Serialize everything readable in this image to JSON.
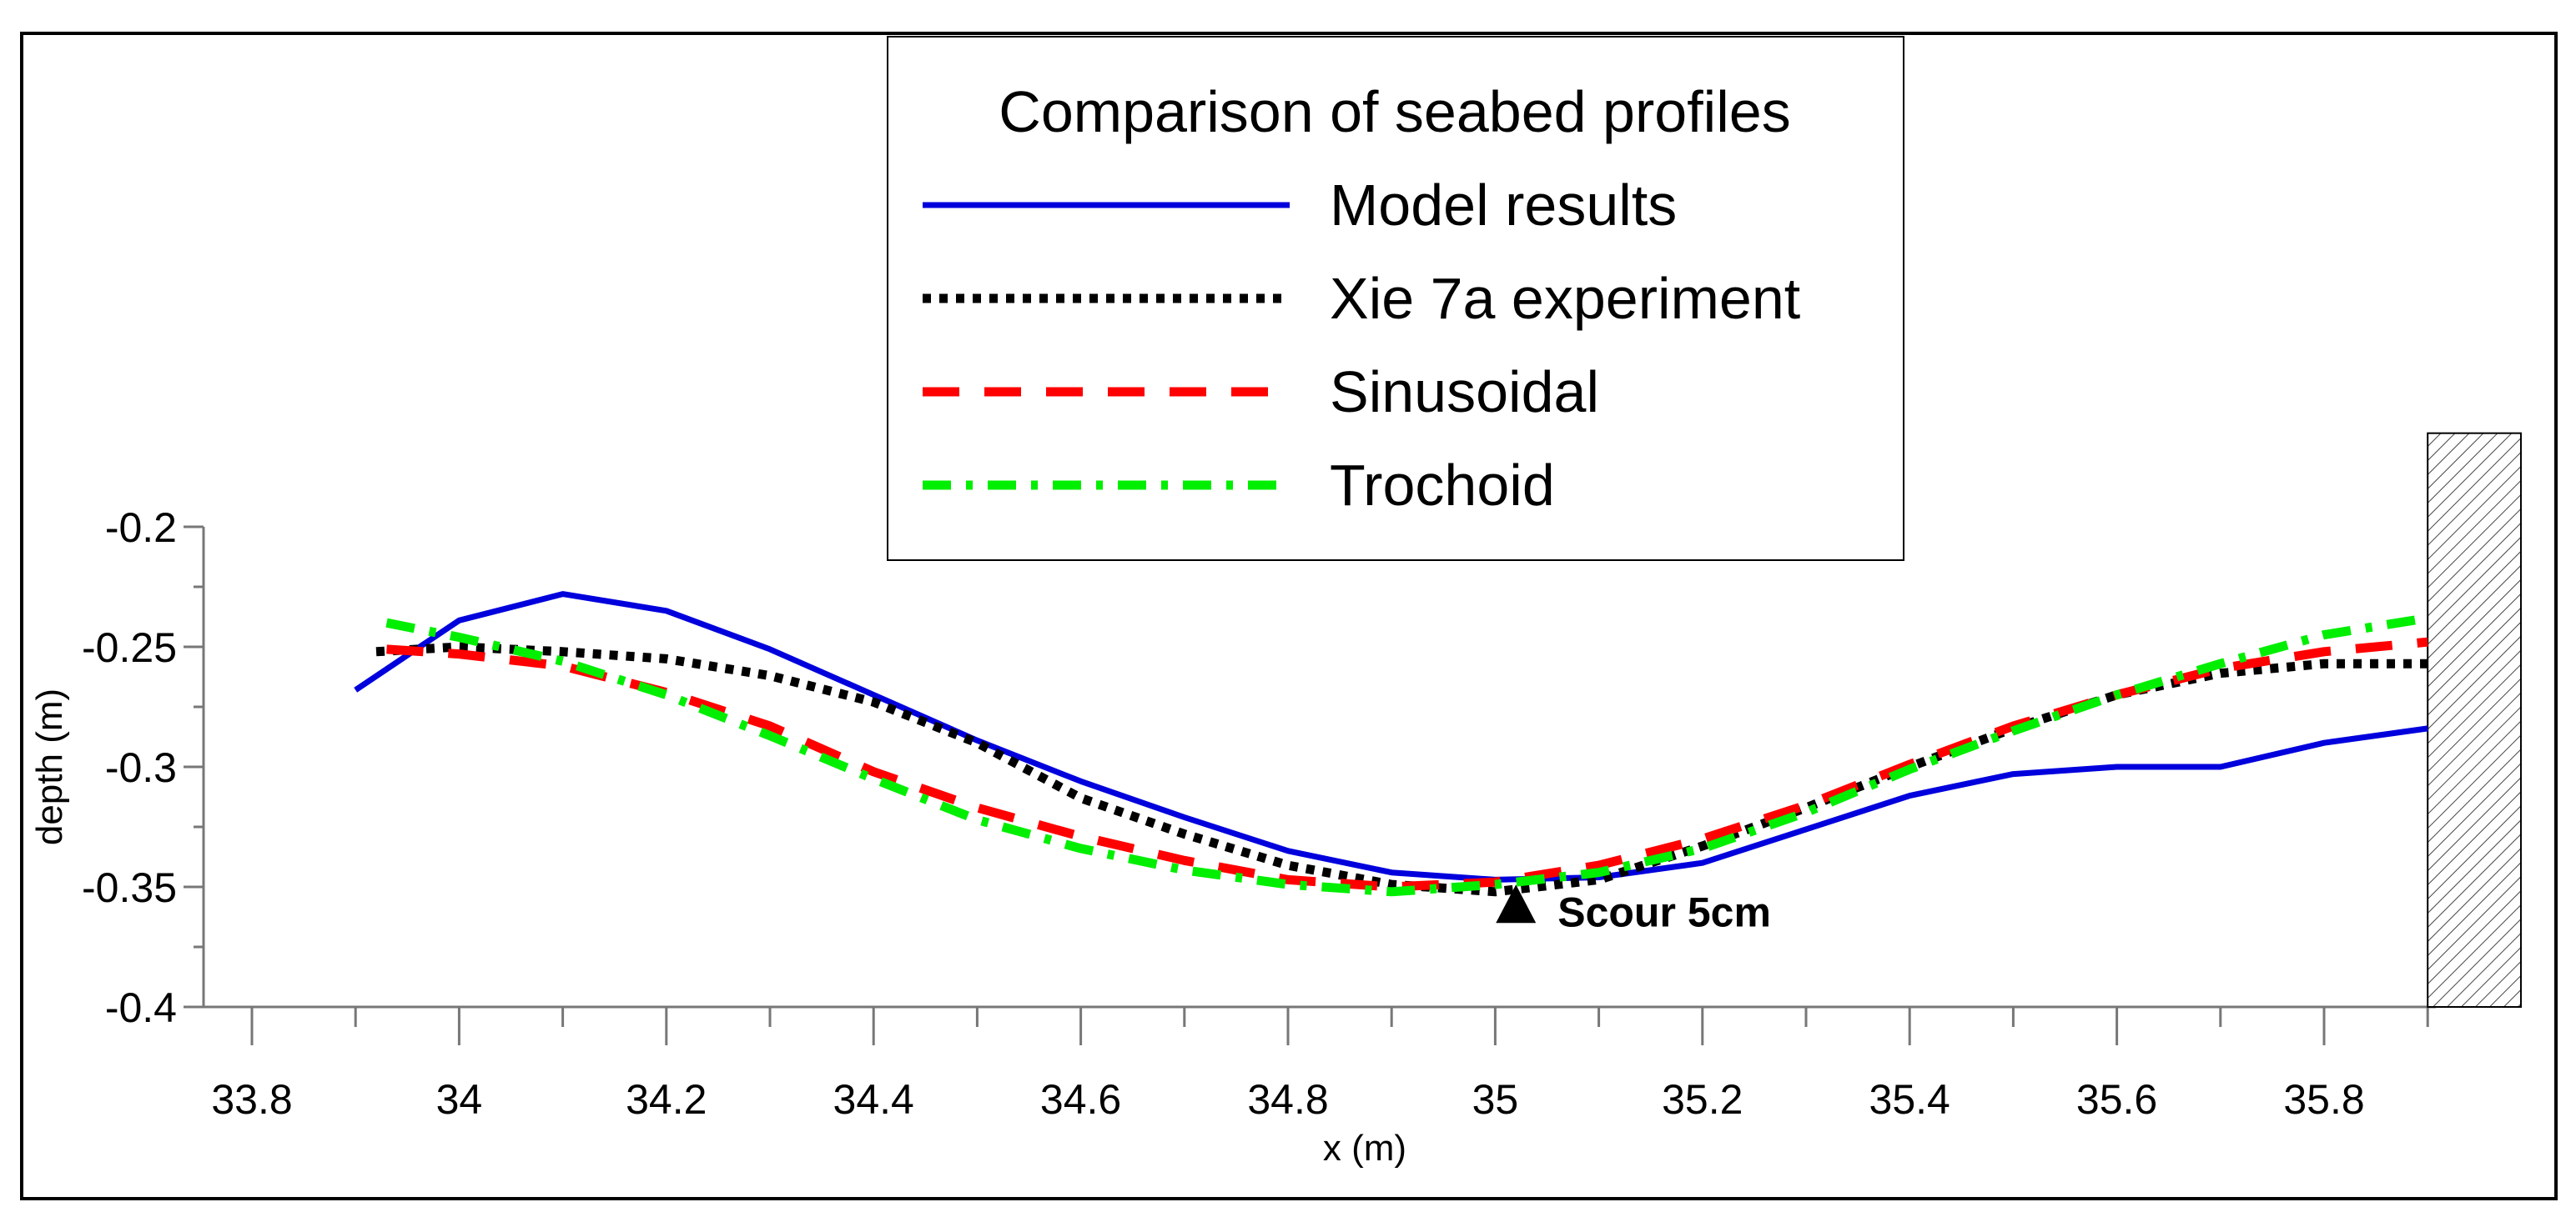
{
  "chart_data": {
    "type": "line",
    "title": "Comparison of seabed profiles",
    "xlabel": "x (m)",
    "ylabel": "depth (m)",
    "xlim": [
      33.8,
      35.9
    ],
    "ylim": [
      -0.4,
      -0.2
    ],
    "x_ticks": [
      "33.8",
      "34",
      "34.2",
      "34.4",
      "34.6",
      "34.8",
      "35",
      "35.2",
      "35.4",
      "35.6",
      "35.8"
    ],
    "x_tick_values": [
      33.8,
      34.0,
      34.2,
      34.4,
      34.6,
      34.8,
      35.0,
      35.2,
      35.4,
      35.6,
      35.8
    ],
    "y_ticks": [
      "-0.2",
      "-0.25",
      "-0.3",
      "-0.35",
      "-0.4"
    ],
    "y_tick_values": [
      -0.2,
      -0.25,
      -0.3,
      -0.35,
      -0.4
    ],
    "grid": false,
    "legend_position": "top-center",
    "series": [
      {
        "name": "Model results",
        "color": "#0000dd",
        "style": "solid",
        "x": [
          33.9,
          34.0,
          34.1,
          34.2,
          34.3,
          34.4,
          34.5,
          34.6,
          34.7,
          34.8,
          34.9,
          35.0,
          35.1,
          35.2,
          35.3,
          35.4,
          35.5,
          35.6,
          35.7,
          35.8,
          35.9
        ],
        "y": [
          -0.268,
          -0.239,
          -0.228,
          -0.235,
          -0.251,
          -0.27,
          -0.289,
          -0.306,
          -0.321,
          -0.335,
          -0.344,
          -0.347,
          -0.346,
          -0.34,
          -0.326,
          -0.312,
          -0.303,
          -0.3,
          -0.3,
          -0.29,
          -0.284
        ]
      },
      {
        "name": "Xie 7a experiment",
        "color": "#000000",
        "style": "dotted",
        "x": [
          33.92,
          34.0,
          34.1,
          34.2,
          34.3,
          34.4,
          34.5,
          34.6,
          34.7,
          34.8,
          34.9,
          35.0,
          35.1,
          35.2,
          35.3,
          35.4,
          35.5,
          35.6,
          35.7,
          35.8,
          35.9
        ],
        "y": [
          -0.252,
          -0.25,
          -0.252,
          -0.255,
          -0.262,
          -0.273,
          -0.29,
          -0.313,
          -0.328,
          -0.341,
          -0.349,
          -0.352,
          -0.347,
          -0.333,
          -0.317,
          -0.3,
          -0.284,
          -0.27,
          -0.261,
          -0.257,
          -0.257
        ]
      },
      {
        "name": "Sinusoidal",
        "color": "#ff0000",
        "style": "dashed",
        "x": [
          33.93,
          34.0,
          34.1,
          34.2,
          34.3,
          34.4,
          34.5,
          34.6,
          34.7,
          34.8,
          34.9,
          35.0,
          35.1,
          35.2,
          35.3,
          35.4,
          35.5,
          35.6,
          35.7,
          35.8,
          35.9
        ],
        "y": [
          -0.251,
          -0.253,
          -0.258,
          -0.269,
          -0.283,
          -0.302,
          -0.317,
          -0.329,
          -0.339,
          -0.347,
          -0.35,
          -0.348,
          -0.341,
          -0.33,
          -0.316,
          -0.299,
          -0.283,
          -0.27,
          -0.259,
          -0.252,
          -0.248
        ]
      },
      {
        "name": "Trochoid",
        "color": "#00ee00",
        "style": "dashdot",
        "x": [
          33.93,
          34.0,
          34.1,
          34.2,
          34.3,
          34.4,
          34.5,
          34.6,
          34.7,
          34.8,
          34.9,
          35.0,
          35.1,
          35.2,
          35.3,
          35.4,
          35.5,
          35.6,
          35.7,
          35.8,
          35.9
        ],
        "y": [
          -0.24,
          -0.246,
          -0.256,
          -0.27,
          -0.287,
          -0.305,
          -0.322,
          -0.334,
          -0.343,
          -0.349,
          -0.352,
          -0.349,
          -0.344,
          -0.334,
          -0.319,
          -0.301,
          -0.285,
          -0.27,
          -0.257,
          -0.245,
          -0.238
        ]
      }
    ],
    "annotations": [
      {
        "text": "Scour 5cm",
        "x": 35.02,
        "y": -0.356,
        "marker": "triangle"
      }
    ],
    "wall": {
      "x_start": 35.9,
      "x_end": 35.99,
      "y_top": -0.161,
      "y_bottom": -0.4
    }
  }
}
